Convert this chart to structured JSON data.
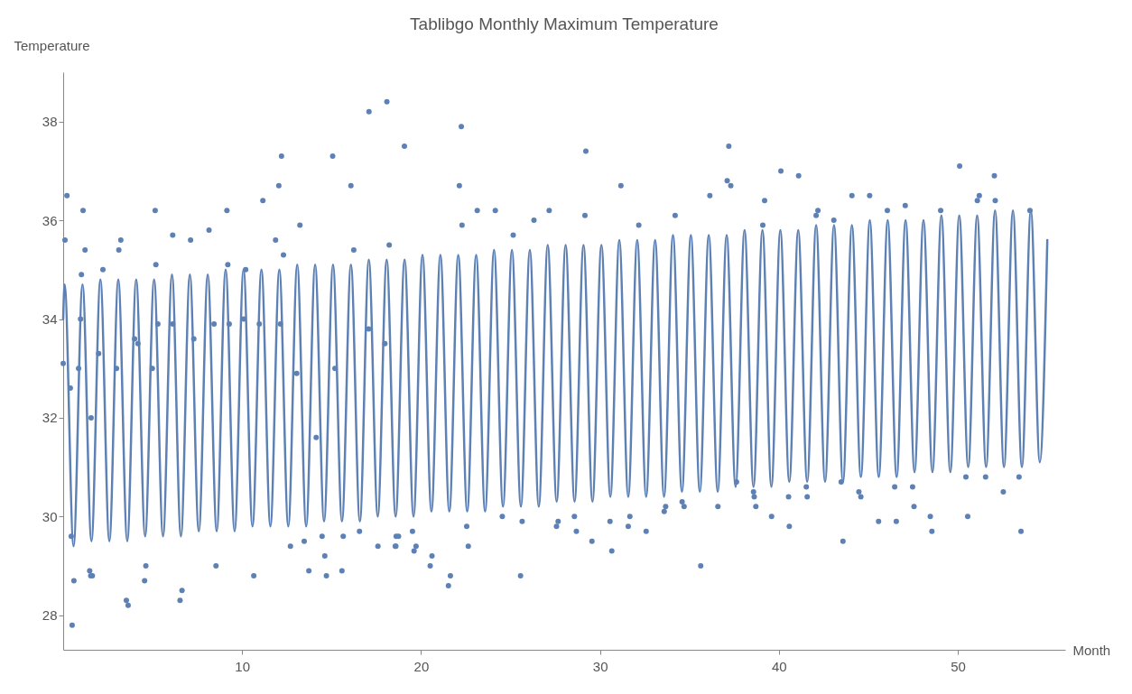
{
  "chart_data": {
    "type": "line",
    "title": "Tablibgo Monthly Maximum Temperature",
    "xlabel": "Month",
    "ylabel": "Temperature",
    "xlim": [
      0,
      56
    ],
    "ylim": [
      27.3,
      39
    ],
    "xticks": [
      10,
      20,
      30,
      40,
      50
    ],
    "yticks": [
      28,
      30,
      32,
      34,
      36,
      38
    ],
    "grid": false,
    "series": [
      {
        "color": "#5e81b5",
        "x": [
          0,
          0.08,
          0.58,
          1.08,
          1.58,
          2.08,
          2.58,
          3.08,
          3.58,
          4.08,
          4.58,
          5.08,
          5.58,
          6.08,
          6.58,
          7.08,
          7.58,
          8.08,
          8.58,
          9.08,
          9.58,
          10.08,
          10.58,
          11.08,
          11.58,
          12.08,
          12.58,
          13.08,
          13.58,
          14.08,
          14.58,
          15.08,
          15.58,
          16.08,
          16.58,
          17.08,
          17.58,
          18.08,
          18.58,
          19.08,
          19.58,
          20.08,
          20.58,
          21.08,
          21.58,
          22.08,
          22.58,
          23.08,
          23.58,
          24.08,
          24.58,
          25.08,
          25.58,
          26.08,
          26.58,
          27.08,
          27.58,
          28.08,
          28.58,
          29.08,
          29.58,
          30.08,
          30.58,
          31.08,
          31.58,
          32.08,
          32.58,
          33.08,
          33.58,
          34.08,
          34.58,
          35.08,
          35.58,
          36.08,
          36.58,
          37.08,
          37.58,
          38.08,
          38.58,
          39.08,
          39.58,
          40.08,
          40.58,
          41.08,
          41.58,
          42.08,
          42.58,
          43.08,
          43.58,
          44.08,
          44.58,
          45.08,
          45.58,
          46.08,
          46.58,
          47.08,
          47.58,
          48.08,
          48.58,
          49.08,
          49.58,
          50.08,
          50.58,
          51.08,
          51.58,
          52.08,
          52.58,
          53.08,
          53.58,
          54.08,
          54.58,
          55.0
        ],
        "values": [
          34.0,
          34.7,
          29.4,
          34.7,
          29.5,
          34.8,
          29.5,
          34.8,
          29.5,
          34.8,
          29.6,
          34.8,
          29.6,
          34.9,
          29.6,
          34.9,
          29.7,
          34.9,
          29.7,
          35.0,
          29.7,
          35.0,
          29.8,
          35.0,
          29.8,
          35.0,
          29.8,
          35.1,
          29.8,
          35.1,
          29.9,
          35.1,
          29.9,
          35.1,
          29.9,
          35.2,
          30.0,
          35.2,
          30.0,
          35.2,
          30.0,
          35.3,
          30.1,
          35.3,
          30.1,
          35.3,
          30.1,
          35.3,
          30.1,
          35.4,
          30.2,
          35.4,
          30.2,
          35.4,
          30.2,
          35.5,
          30.3,
          35.5,
          30.3,
          35.5,
          30.3,
          35.5,
          30.4,
          35.6,
          30.4,
          35.6,
          30.4,
          35.6,
          30.4,
          35.7,
          30.5,
          35.7,
          30.5,
          35.7,
          30.5,
          35.7,
          30.6,
          35.8,
          30.6,
          35.8,
          30.6,
          35.8,
          30.7,
          35.8,
          30.7,
          35.9,
          30.7,
          35.9,
          30.7,
          35.9,
          30.8,
          36.0,
          30.8,
          36.0,
          30.8,
          36.0,
          30.9,
          36.0,
          30.9,
          36.1,
          30.9,
          36.1,
          31.0,
          36.1,
          31.0,
          36.2,
          31.0,
          36.2,
          31.0,
          36.2,
          31.1,
          35.6
        ]
      },
      {
        "type": "scatter",
        "color": "#5e81b5",
        "x": [
          0.21,
          0.1,
          0.0,
          1.11,
          1.22,
          1.02,
          2.22,
          0.45,
          0.6,
          0.5,
          1.48,
          1.54,
          1.63,
          3.22,
          3.11,
          3.53,
          3.63,
          4.62,
          4.55,
          5.14,
          5.18,
          6.12,
          6.64,
          6.53,
          7.12,
          8.15,
          8.54,
          9.15,
          9.2,
          10.2,
          10.65,
          11.16,
          12.05,
          12.2,
          11.87,
          12.31,
          12.7,
          13.23,
          13.47,
          13.73,
          14.47,
          14.62,
          14.71,
          15.06,
          15.58,
          15.65,
          16.08,
          16.24,
          16.56,
          17.09,
          18.09,
          18.22,
          17.59,
          18.59,
          19.07,
          22.25,
          22.14,
          22.29,
          23.14,
          24.15,
          25.15,
          26.31,
          27.16,
          29.21,
          29.16,
          31.17,
          32.17,
          34.2,
          36.14,
          18.56,
          18.61,
          18.74,
          19.52,
          19.72,
          19.61,
          20.61,
          20.51,
          21.64,
          21.53,
          22.55,
          22.64,
          24.54,
          25.65,
          25.56,
          27.57,
          27.66,
          28.57,
          28.68,
          29.55,
          30.66,
          30.56,
          31.58,
          31.67,
          32.58,
          33.59,
          33.67,
          34.59,
          34.7,
          35.63,
          36.59,
          37.2,
          37.11,
          37.31,
          39.2,
          40.11,
          41.1,
          39.1,
          42.08,
          42.18,
          43.07,
          44.08,
          45.07,
          46.06,
          47.06,
          49.04,
          50.1,
          51.09,
          51.2,
          52.04,
          52.09,
          54.03,
          37.63,
          38.58,
          38.62,
          38.71,
          39.59,
          40.58,
          40.54,
          41.53,
          41.58,
          43.48,
          43.58,
          44.47,
          44.58,
          45.57,
          46.47,
          46.56,
          47.47,
          47.55,
          48.46,
          48.55,
          50.45,
          50.55,
          51.55,
          52.54,
          53.42,
          53.53,
          0.4,
          0.97,
          0.86,
          1.56,
          1.98,
          2.98,
          3.99,
          4.18,
          4.98,
          5.29,
          6.12,
          7.3,
          8.43,
          9.28,
          10.09,
          10.96,
          12.14,
          13.05,
          14.14,
          15.19,
          17.07,
          17.98
        ],
        "values": [
          36.5,
          35.6,
          33.1,
          36.2,
          35.4,
          34.9,
          35.0,
          29.6,
          28.7,
          27.8,
          28.9,
          28.8,
          28.8,
          35.6,
          35.4,
          28.3,
          28.2,
          29.0,
          28.7,
          36.2,
          35.1,
          35.7,
          28.5,
          28.3,
          35.6,
          35.8,
          29.0,
          36.2,
          35.1,
          35.0,
          28.8,
          36.4,
          36.7,
          37.3,
          35.6,
          35.3,
          29.4,
          35.9,
          29.5,
          28.9,
          29.6,
          29.2,
          28.8,
          37.3,
          28.9,
          29.6,
          36.7,
          35.4,
          29.7,
          38.2,
          38.4,
          35.5,
          29.4,
          29.4,
          37.5,
          37.9,
          36.7,
          35.9,
          36.2,
          36.2,
          35.7,
          36.0,
          36.2,
          37.4,
          36.1,
          36.7,
          35.9,
          36.1,
          36.5,
          29.4,
          29.6,
          29.6,
          29.7,
          29.4,
          29.3,
          29.2,
          29.0,
          28.8,
          28.6,
          29.8,
          29.4,
          30.0,
          29.9,
          28.8,
          29.8,
          29.9,
          30.0,
          29.7,
          29.5,
          29.3,
          29.9,
          29.8,
          30.0,
          29.7,
          30.1,
          30.2,
          30.3,
          30.2,
          29.0,
          30.2,
          37.5,
          36.8,
          36.7,
          36.4,
          37.0,
          36.9,
          35.9,
          36.1,
          36.2,
          36.0,
          36.5,
          36.5,
          36.2,
          36.3,
          36.2,
          37.1,
          36.4,
          36.5,
          36.9,
          36.4,
          36.2,
          30.7,
          30.5,
          30.4,
          30.2,
          30.0,
          29.8,
          30.4,
          30.6,
          30.4,
          30.7,
          29.5,
          30.5,
          30.4,
          29.9,
          30.6,
          29.9,
          30.6,
          30.2,
          30.0,
          29.7,
          30.8,
          30.0,
          30.8,
          30.5,
          30.8,
          29.7,
          32.6,
          34.0,
          33.0,
          32.0,
          33.3,
          33.0,
          33.6,
          33.5,
          33.0,
          33.9,
          33.9,
          33.6,
          33.9,
          33.9,
          34.0,
          33.9,
          33.9,
          32.9,
          31.6,
          33.0,
          33.8,
          33.5
        ]
      }
    ]
  }
}
